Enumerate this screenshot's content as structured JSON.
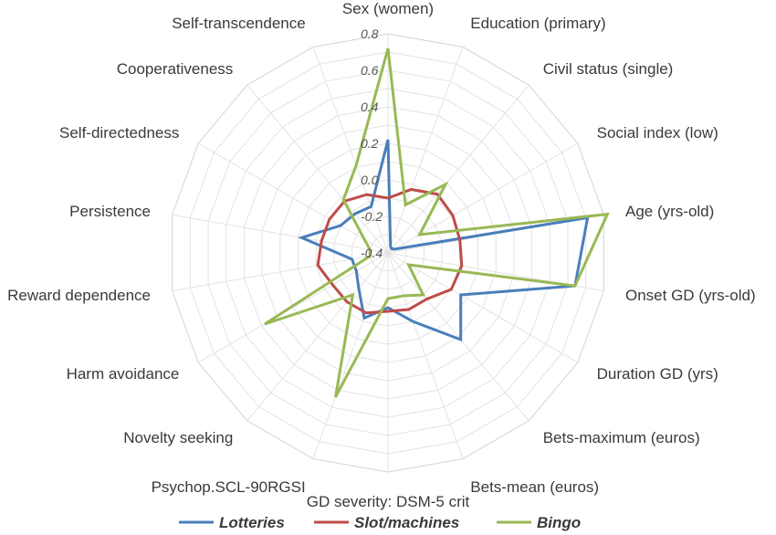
{
  "chart_data": {
    "type": "radar",
    "axes": [
      "Sex (women)",
      "Education (primary)",
      "Civil status (single)",
      "Social index (low)",
      "Age (yrs-old)",
      "Onset  GD (yrs-old)",
      "Duration GD (yrs)",
      "Bets-maximum (euros)",
      "Bets-mean (euros)",
      "GD severity: DSM-5 crit",
      "Psychop.SCL-90RGSI",
      "Novelty seeking",
      "Harm avoidance",
      "Reward dependence",
      "Persistence",
      "Self-directedness",
      "Cooperativeness",
      "Self-transcendence"
    ],
    "rlim": [
      -0.4,
      0.8
    ],
    "ticks": [
      "0.8",
      "0.6",
      "0.4",
      "0.2",
      "0.0",
      "-0.2",
      "-0.4"
    ],
    "grid": true,
    "legend_position": "bottom",
    "series": [
      {
        "name": "Lotteries",
        "color": "#4a7ebb",
        "values": [
          0.22,
          -0.36,
          -0.37,
          -0.36,
          0.71,
          0.64,
          0.06,
          0.22,
          0.0,
          -0.1,
          -0.02,
          -0.15,
          -0.2,
          -0.2,
          0.08,
          -0.1,
          -0.12,
          -0.13
        ]
      },
      {
        "name": "Slot/machines",
        "color": "#be4b48",
        "values": [
          -0.1,
          -0.03,
          0.02,
          0.01,
          0.0,
          0.01,
          0.0,
          -0.07,
          -0.07,
          -0.08,
          -0.05,
          -0.05,
          -0.05,
          -0.01,
          -0.03,
          -0.03,
          -0.03,
          -0.06
        ]
      },
      {
        "name": "Bingo",
        "color": "#98b954",
        "values": [
          0.72,
          -0.12,
          0.09,
          -0.2,
          0.82,
          0.64,
          -0.27,
          -0.1,
          -0.15,
          -0.15,
          0.44,
          -0.1,
          0.38,
          -0.3,
          -0.3,
          -0.25,
          -0.02,
          0.11
        ]
      }
    ]
  }
}
